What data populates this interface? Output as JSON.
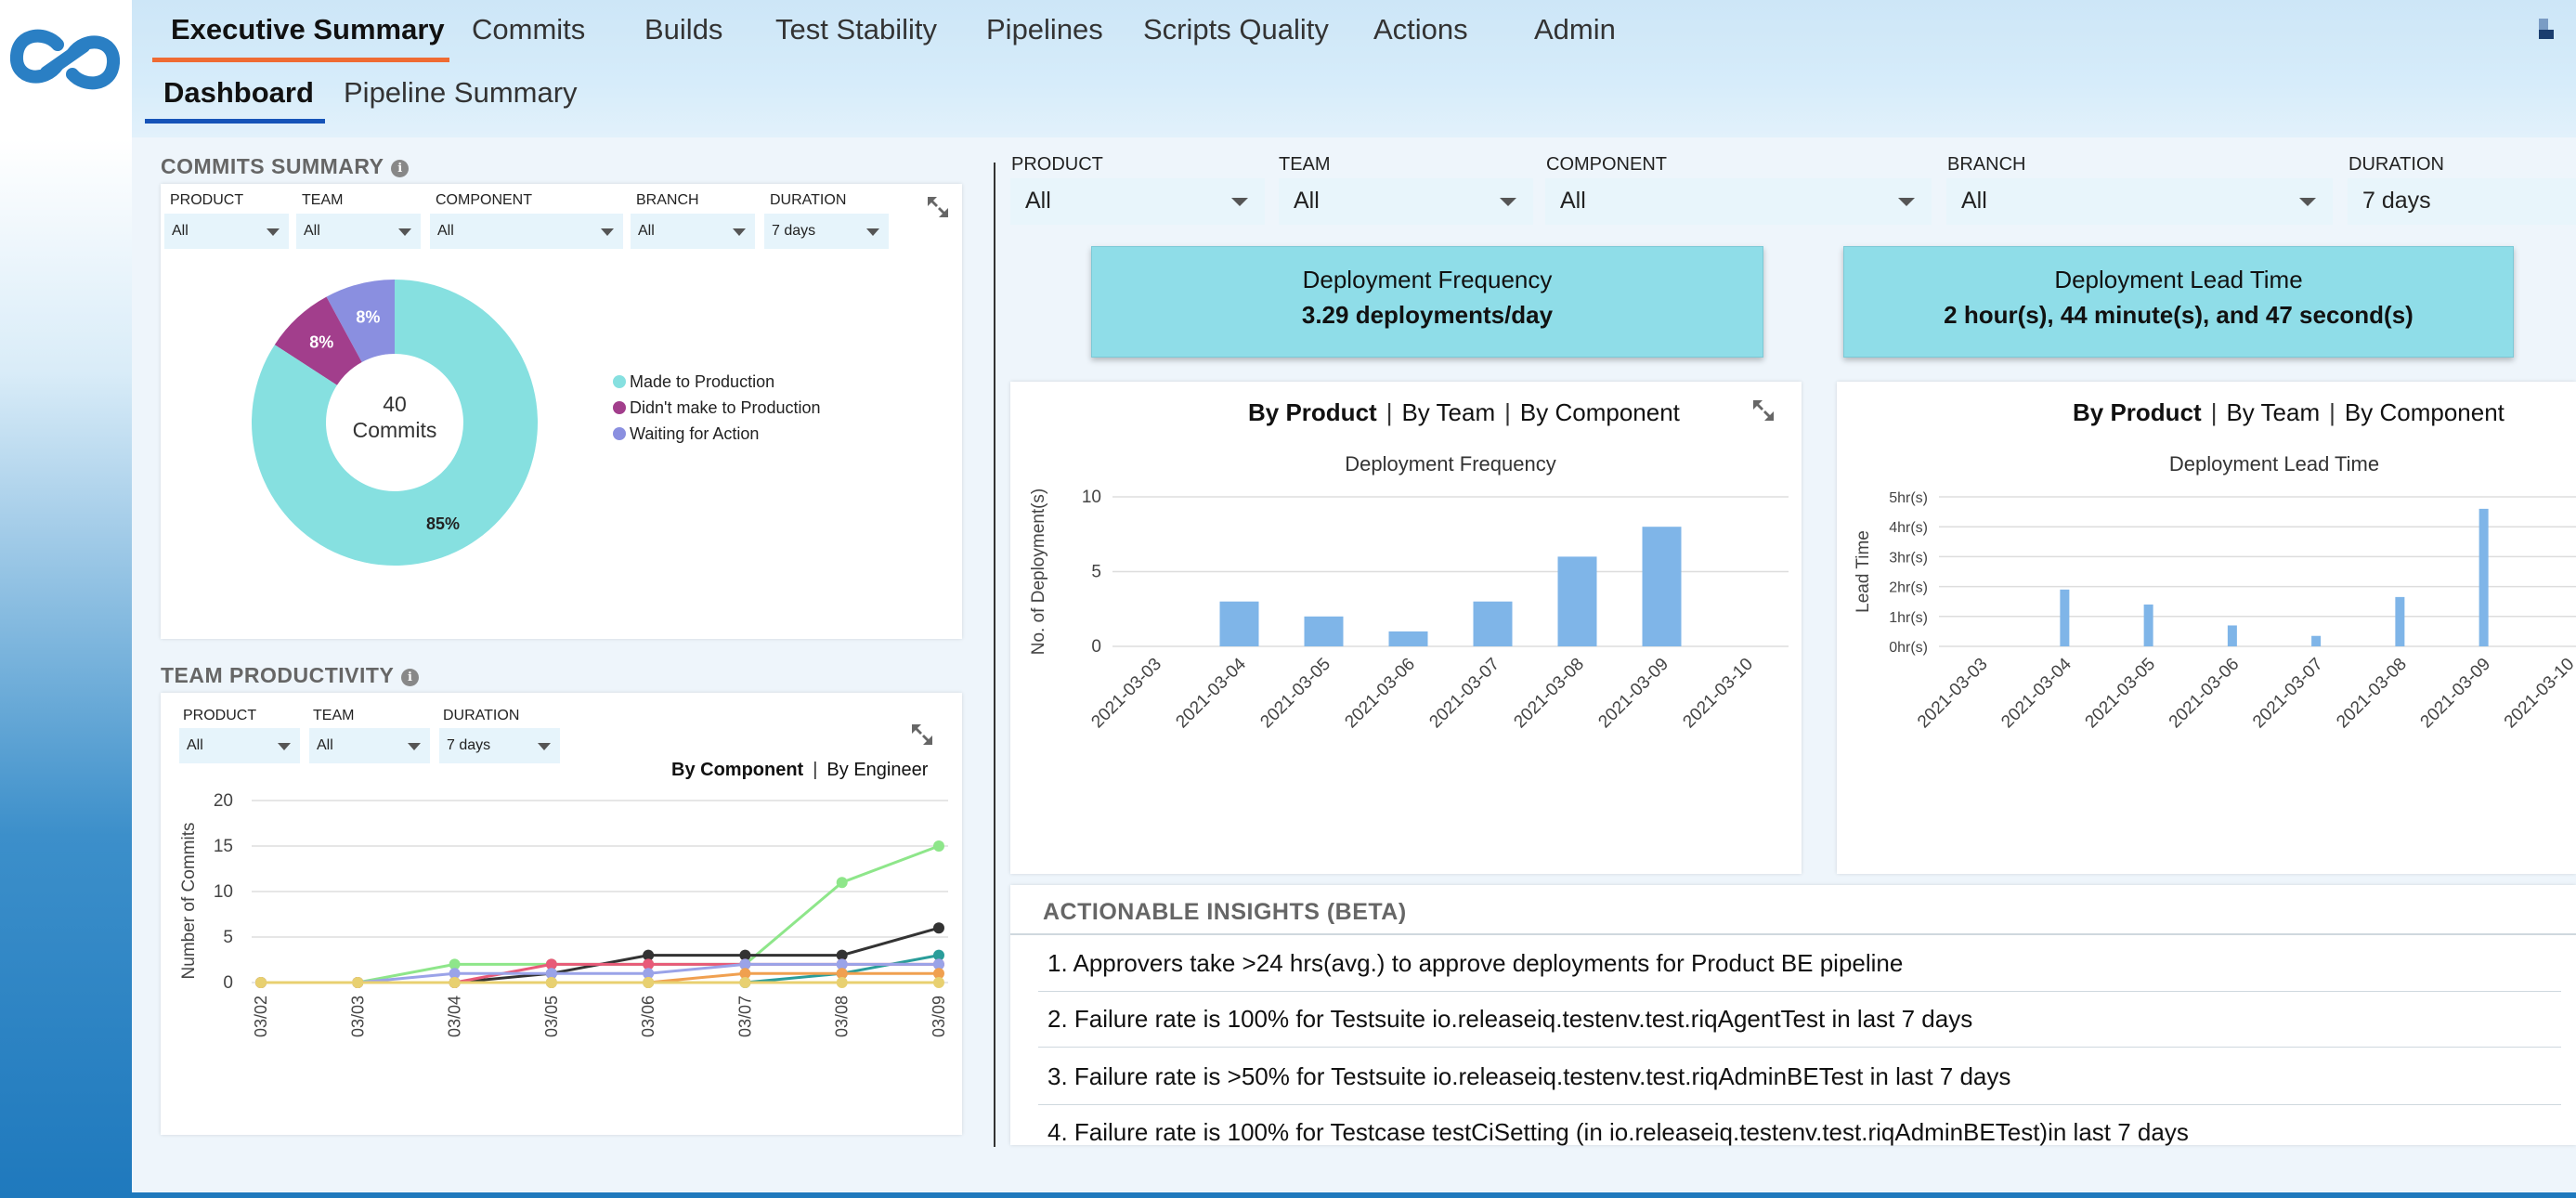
{
  "nav": {
    "tabs": [
      {
        "label": "Executive Summary",
        "active": true
      },
      {
        "label": "Commits"
      },
      {
        "label": "Builds"
      },
      {
        "label": "Test Stability"
      },
      {
        "label": "Pipelines"
      },
      {
        "label": "Scripts Quality"
      },
      {
        "label": "Actions"
      },
      {
        "label": "Admin"
      }
    ],
    "subtabs": [
      {
        "label": "Dashboard",
        "active": true
      },
      {
        "label": "Pipeline Summary"
      }
    ]
  },
  "commits_summary": {
    "title": "COMMITS SUMMARY",
    "filters": [
      {
        "label": "PRODUCT",
        "value": "All"
      },
      {
        "label": "TEAM",
        "value": "All"
      },
      {
        "label": "COMPONENT",
        "value": "All"
      },
      {
        "label": "BRANCH",
        "value": "All"
      },
      {
        "label": "DURATION",
        "value": "7 days"
      }
    ],
    "center_count": "40",
    "center_label": "Commits"
  },
  "team_productivity": {
    "title": "TEAM PRODUCTIVITY",
    "filters": [
      {
        "label": "PRODUCT",
        "value": "All"
      },
      {
        "label": "TEAM",
        "value": "All"
      },
      {
        "label": "DURATION",
        "value": "7 days"
      }
    ],
    "toggle": {
      "active": "By Component",
      "other": "By Engineer"
    }
  },
  "pipeline_filters": [
    {
      "label": "PRODUCT",
      "value": "All"
    },
    {
      "label": "TEAM",
      "value": "All"
    },
    {
      "label": "COMPONENT",
      "value": "All"
    },
    {
      "label": "BRANCH",
      "value": "All"
    },
    {
      "label": "DURATION",
      "value": "7 days"
    }
  ],
  "metrics": {
    "frequency": {
      "title": "Deployment Frequency",
      "value": "3.29 deployments/day"
    },
    "lead_time": {
      "title": "Deployment Lead Time",
      "value": "2 hour(s), 44 minute(s), and 47 second(s)"
    }
  },
  "chart_toggle": {
    "a": "By Product",
    "b": "By Team",
    "c": "By Component",
    "sep": "|"
  },
  "insights": {
    "title": "ACTIONABLE INSIGHTS (BETA)",
    "items": [
      "1. Approvers take >24 hrs(avg.) to approve deployments for Product BE pipeline",
      "2. Failure rate is 100% for Testsuite io.releaseiq.testenv.test.riqAgentTest in last 7 days",
      "3. Failure rate is >50% for Testsuite io.releaseiq.testenv.test.riqAdminBETest in last 7 days",
      "4. Failure rate is 100% for Testcase testCiSetting (in io.releaseiq.testenv.test.riqAdminBETest)in last 7 days"
    ]
  },
  "colors": {
    "made_to_production": "#86e0e0",
    "didnt_make": "#a23e8c",
    "waiting": "#8a8fe0",
    "bar": "#7fb5e8"
  },
  "chart_data": [
    {
      "type": "pie",
      "title": "",
      "categories": [
        "Made to Production",
        "Didn't make to Production",
        "Waiting for Action"
      ],
      "values": [
        85,
        8,
        8
      ],
      "labels": [
        "85%",
        "8%",
        "8%"
      ],
      "legend_placement": "right"
    },
    {
      "type": "bar",
      "title": "Deployment Frequency",
      "ylabel": "No. of Deployment(s)",
      "categories": [
        "2021-03-03",
        "2021-03-04",
        "2021-03-05",
        "2021-03-06",
        "2021-03-07",
        "2021-03-08",
        "2021-03-09",
        "2021-03-10"
      ],
      "values": [
        0,
        3,
        2,
        1,
        3,
        6,
        8,
        0
      ],
      "yticks": [
        "0",
        "5",
        "10"
      ],
      "ylim": [
        0,
        10
      ]
    },
    {
      "type": "bar",
      "title": "Deployment Lead Time",
      "ylabel": "Lead Time",
      "categories": [
        "2021-03-03",
        "2021-03-04",
        "2021-03-05",
        "2021-03-06",
        "2021-03-07",
        "2021-03-08",
        "2021-03-09",
        "2021-03-10"
      ],
      "values": [
        0,
        1.9,
        1.4,
        0.7,
        0.35,
        1.65,
        4.6,
        0
      ],
      "yticks": [
        "0hr(s)",
        "1hr(s)",
        "2hr(s)",
        "3hr(s)",
        "4hr(s)",
        "5hr(s)"
      ],
      "ylim": [
        0,
        5
      ]
    },
    {
      "type": "line",
      "title": "",
      "ylabel": "Number of Commits",
      "categories": [
        "03/02",
        "03/03",
        "03/04",
        "03/05",
        "03/06",
        "03/07",
        "03/08",
        "03/09"
      ],
      "yticks": [
        "0",
        "5",
        "10",
        "15",
        "20"
      ],
      "ylim": [
        0,
        20
      ],
      "series": [
        {
          "color": "#8ee68a",
          "values": [
            0,
            0,
            2,
            2,
            2,
            2,
            11,
            15
          ]
        },
        {
          "color": "#333333",
          "values": [
            0,
            0,
            0,
            1,
            3,
            3,
            3,
            6
          ]
        },
        {
          "color": "#2a9d9a",
          "values": [
            0,
            0,
            0,
            0,
            0,
            0,
            1,
            3
          ]
        },
        {
          "color": "#e85a78",
          "values": [
            0,
            0,
            0,
            2,
            2,
            2,
            2,
            2
          ]
        },
        {
          "color": "#9aa3e8",
          "values": [
            0,
            0,
            1,
            1,
            1,
            2,
            2,
            2
          ]
        },
        {
          "color": "#f0a050",
          "values": [
            0,
            0,
            0,
            0,
            0,
            1,
            1,
            1
          ]
        },
        {
          "color": "#e8d070",
          "values": [
            0,
            0,
            0,
            0,
            0,
            0,
            0,
            0
          ]
        }
      ]
    }
  ]
}
